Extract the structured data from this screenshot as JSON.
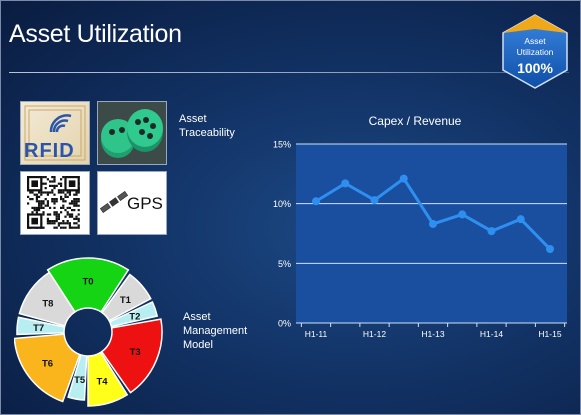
{
  "slide": {
    "title": "Asset Utilization"
  },
  "badge": {
    "line1": "Asset",
    "line2": "Utilization",
    "value": "100%"
  },
  "tiles": {
    "rfid_text": "RFID",
    "gps_text": "GPS"
  },
  "labels": {
    "traceability_line1": "Asset",
    "traceability_line2": "Traceability",
    "amm_line1": "Asset",
    "amm_line2": "Management",
    "amm_line3": "Model"
  },
  "wheel": {
    "segments": [
      {
        "name": "T0",
        "color": "#14d414"
      },
      {
        "name": "T1",
        "color": "#d9d9d9"
      },
      {
        "name": "T2",
        "color": "#b7eef2"
      },
      {
        "name": "T3",
        "color": "#ee1111"
      },
      {
        "name": "T4",
        "color": "#ffff1a"
      },
      {
        "name": "T5",
        "color": "#b7eef2"
      },
      {
        "name": "T6",
        "color": "#fbb51c"
      },
      {
        "name": "T7",
        "color": "#b7eef2"
      },
      {
        "name": "T8",
        "color": "#d9d9d9"
      }
    ]
  },
  "chart_data": {
    "type": "line",
    "title": "Capex / Revenue",
    "xlabel": "",
    "ylabel": "",
    "x_tick_labels": [
      "H1-11",
      "H1-12",
      "H1-13",
      "H1-14",
      "H1-15"
    ],
    "ylim": [
      0,
      15
    ],
    "y_ticks": [
      "0%",
      "5%",
      "10%",
      "15%"
    ],
    "grid": "horizontal",
    "series": [
      {
        "color": "#2f8ff0",
        "values": [
          10.2,
          11.7,
          10.3,
          12.1,
          8.3,
          9.1,
          7.7,
          8.7,
          6.2
        ]
      }
    ]
  }
}
